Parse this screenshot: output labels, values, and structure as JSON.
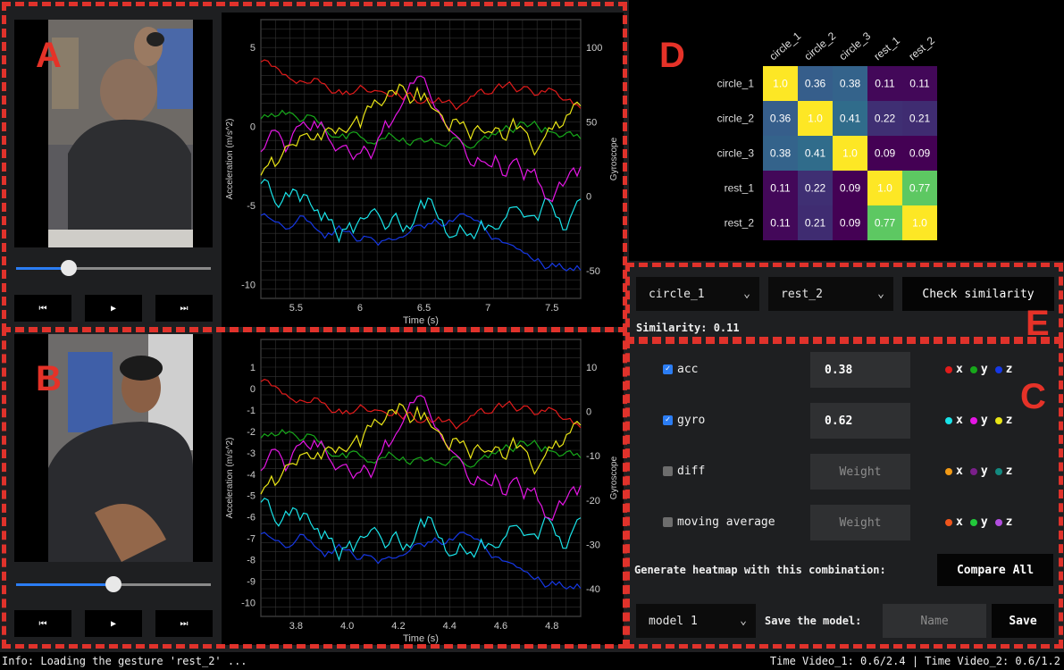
{
  "panels": {
    "a": "A",
    "b": "B",
    "c": "C",
    "d": "D",
    "e": "E"
  },
  "video1": {
    "slider_fraction": 0.27,
    "controls": [
      "⏮",
      "▶",
      "⏭"
    ]
  },
  "video2": {
    "slider_fraction": 0.5,
    "controls": [
      "⏮",
      "▶",
      "⏭"
    ]
  },
  "chart1": {
    "xlabel": "Time (s)",
    "ylabel": "Acceleration (m/s^2)",
    "y2label": "Gyroscope",
    "xticks": [
      "5.5",
      "6",
      "6.5",
      "7",
      "7.5"
    ],
    "yticks": [
      "5",
      "0",
      "-5",
      "-10"
    ],
    "y2ticks": [
      "100",
      "50",
      "0",
      "-50"
    ]
  },
  "chart2": {
    "xlabel": "Time (s)",
    "ylabel": "Acceleration (m/s^2)",
    "y2label": "Gyroscope",
    "xticks": [
      "3.8",
      "4.0",
      "4.2",
      "4.4",
      "4.6",
      "4.8"
    ],
    "yticks": [
      "1",
      "0",
      "-1",
      "-2",
      "-3",
      "-4",
      "-5",
      "-6",
      "-7",
      "-8",
      "-9",
      "-10"
    ],
    "y2ticks": [
      "10",
      "0",
      "-10",
      "-20",
      "-30",
      "-40"
    ]
  },
  "chart_data": {
    "type": "heatmap",
    "title": "",
    "x_labels": [
      "circle_1",
      "circle_2",
      "circle_3",
      "rest_1",
      "rest_2"
    ],
    "y_labels": [
      "circle_1",
      "circle_2",
      "circle_3",
      "rest_1",
      "rest_2"
    ],
    "values": [
      [
        "1.0",
        "0.36",
        "0.38",
        "0.11",
        "0.11"
      ],
      [
        "0.36",
        "1.0",
        "0.41",
        "0.22",
        "0.21"
      ],
      [
        "0.38",
        "0.41",
        "1.0",
        "0.09",
        "0.09"
      ],
      [
        "0.11",
        "0.22",
        "0.09",
        "1.0",
        "0.77"
      ],
      [
        "0.11",
        "0.21",
        "0.09",
        "0.77",
        "1.0"
      ]
    ],
    "colormap": "viridis"
  },
  "similarity": {
    "select_a": "circle_1",
    "select_b": "rest_2",
    "check_label": "Check similarity",
    "result": "Similarity: 0.11"
  },
  "features": [
    {
      "label": "acc",
      "checked": true,
      "weight": "0.38",
      "placeholder": false,
      "legend": [
        {
          "c": "#e11b1b",
          "t": "x"
        },
        {
          "c": "#17a81a",
          "t": "y"
        },
        {
          "c": "#1638e5",
          "t": "z"
        }
      ]
    },
    {
      "label": "gyro",
      "checked": true,
      "weight": "0.62",
      "placeholder": false,
      "legend": [
        {
          "c": "#19e3e8",
          "t": "x"
        },
        {
          "c": "#e516e5",
          "t": "y"
        },
        {
          "c": "#e9e516",
          "t": "z"
        }
      ]
    },
    {
      "label": "diff",
      "checked": false,
      "weight": "Weight",
      "placeholder": true,
      "legend": [
        {
          "c": "#f29a16",
          "t": "x"
        },
        {
          "c": "#7a1f8a",
          "t": "y"
        },
        {
          "c": "#138a80",
          "t": "z"
        }
      ]
    },
    {
      "label": "moving average",
      "checked": false,
      "weight": "Weight",
      "placeholder": true,
      "legend": [
        {
          "c": "#f0551c",
          "t": "x"
        },
        {
          "c": "#22c93b",
          "t": "y"
        },
        {
          "c": "#b24ee0",
          "t": "z"
        }
      ]
    }
  ],
  "heatmap_row": {
    "label": "Generate heatmap with this combination:",
    "button": "Compare All"
  },
  "model_row": {
    "select": "model 1",
    "label": "Save the model:",
    "placeholder": "Name",
    "button": "Save"
  },
  "status": {
    "info": "Info: Loading the gesture 'rest_2' ...",
    "times": "Time Video_1: 0.6/2.4  |  Time Video_2: 0.6/1.2"
  }
}
